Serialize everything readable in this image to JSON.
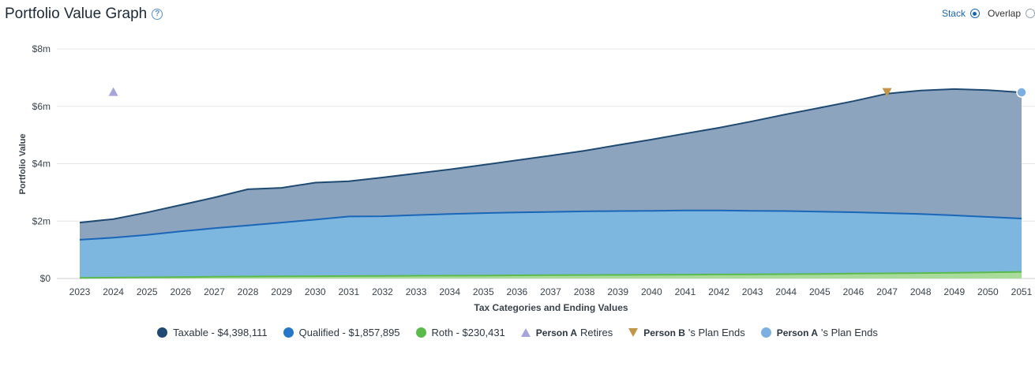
{
  "header": {
    "title": "Portfolio Value Graph",
    "help_glyph": "?"
  },
  "toggle": {
    "options": [
      {
        "label": "Stack",
        "selected": true
      },
      {
        "label": "Overlap",
        "selected": false
      }
    ]
  },
  "legend": [
    {
      "kind": "dot",
      "color": "#1f4a73",
      "text": "Taxable - $4,398,111"
    },
    {
      "kind": "dot",
      "color": "#2677c8",
      "text": "Qualified - $1,857,895"
    },
    {
      "kind": "dot",
      "color": "#5cba4c",
      "text": "Roth - $230,431"
    },
    {
      "kind": "tri-up",
      "color": "#a6a4de",
      "person": "Person A",
      "text": "Retires"
    },
    {
      "kind": "tri-down",
      "color": "#c29648",
      "person": "Person B",
      "text": "'s Plan Ends"
    },
    {
      "kind": "dot",
      "color": "#7db0e0",
      "person": "Person A",
      "text": "'s Plan Ends"
    }
  ],
  "chart_data": {
    "type": "area",
    "stacked": true,
    "xlabel": "Tax Categories and Ending Values",
    "ylabel": "Portfolio Value",
    "ylim": [
      0,
      8000000
    ],
    "y_ticks": [
      "$0",
      "$2m",
      "$4m",
      "$6m",
      "$8m"
    ],
    "x": [
      2023,
      2024,
      2025,
      2026,
      2027,
      2028,
      2029,
      2030,
      2031,
      2032,
      2033,
      2034,
      2035,
      2036,
      2037,
      2038,
      2039,
      2040,
      2041,
      2042,
      2043,
      2044,
      2045,
      2046,
      2047,
      2048,
      2049,
      2050,
      2051
    ],
    "series": [
      {
        "name": "Roth",
        "color": "#5cba4c",
        "fill": "#a9dc9a",
        "values": [
          20000,
          30000,
          40000,
          50000,
          60000,
          70000,
          75000,
          80000,
          85000,
          90000,
          95000,
          100000,
          105000,
          110000,
          115000,
          120000,
          125000,
          130000,
          135000,
          140000,
          145000,
          150000,
          160000,
          170000,
          180000,
          190000,
          200000,
          215000,
          230431
        ]
      },
      {
        "name": "Qualified",
        "color": "#1a66b8",
        "fill": "#7db6df",
        "values": [
          1330000,
          1390000,
          1480000,
          1590000,
          1690000,
          1780000,
          1875000,
          1970000,
          2075000,
          2080000,
          2115000,
          2150000,
          2175000,
          2190000,
          2205000,
          2220000,
          2225000,
          2230000,
          2235000,
          2230000,
          2215000,
          2200000,
          2170000,
          2140000,
          2100000,
          2060000,
          2000000,
          1930000,
          1857895
        ]
      },
      {
        "name": "Taxable",
        "color": "#1f4a73",
        "fill": "#8ca4bd",
        "values": [
          600000,
          650000,
          780000,
          920000,
          1070000,
          1260000,
          1210000,
          1290000,
          1230000,
          1350000,
          1450000,
          1550000,
          1680000,
          1820000,
          1960000,
          2110000,
          2300000,
          2480000,
          2680000,
          2880000,
          3120000,
          3370000,
          3620000,
          3870000,
          4160000,
          4300000,
          4400000,
          4420000,
          4398111
        ]
      }
    ],
    "markers": [
      {
        "shape": "triangle-up",
        "color": "#a6a4de",
        "x": 2024,
        "y": 6500000
      },
      {
        "shape": "triangle-down",
        "color": "#c29648",
        "x": 2047,
        "y": 6500000
      },
      {
        "shape": "circle",
        "color": "#7db0e0",
        "x": 2051,
        "y": 6486437
      }
    ],
    "grid": true
  }
}
